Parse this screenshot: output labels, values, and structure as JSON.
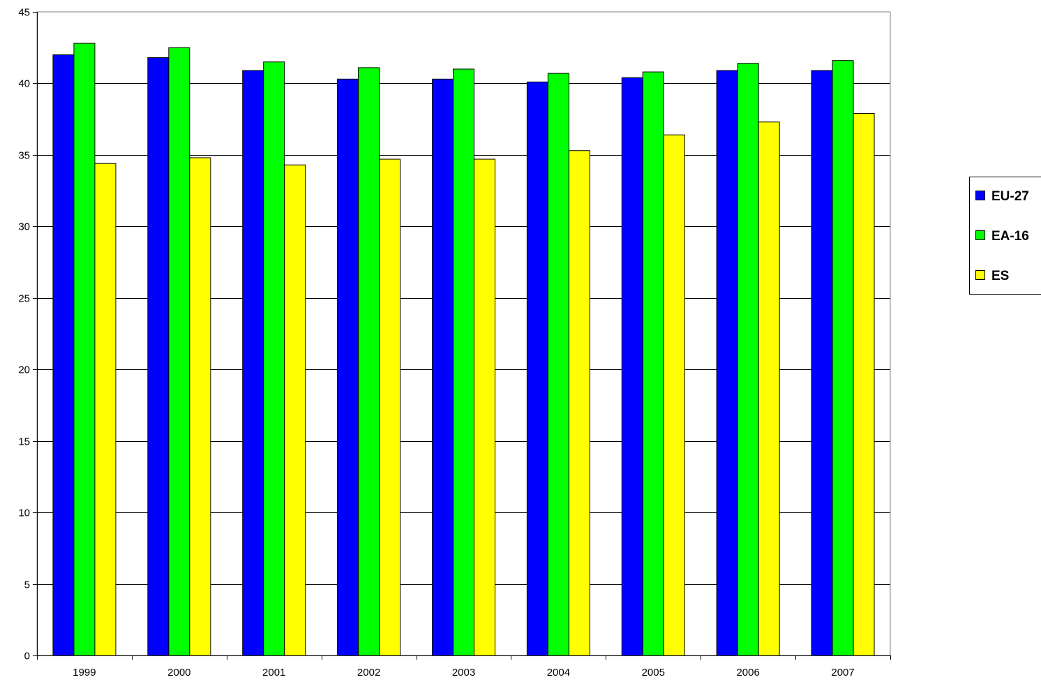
{
  "chart_data": {
    "type": "bar",
    "categories": [
      "1999",
      "2000",
      "2001",
      "2002",
      "2003",
      "2004",
      "2005",
      "2006",
      "2007"
    ],
    "series": [
      {
        "name": "EU-27",
        "color": "#0000ff",
        "values": [
          42.0,
          41.8,
          40.9,
          40.3,
          40.3,
          40.1,
          40.4,
          40.9,
          40.9
        ]
      },
      {
        "name": "EA-16",
        "color": "#00ff00",
        "values": [
          42.8,
          42.5,
          41.5,
          41.1,
          41.0,
          40.7,
          40.8,
          41.4,
          41.6
        ]
      },
      {
        "name": "ES",
        "color": "#ffff00",
        "values": [
          34.4,
          34.8,
          34.3,
          34.7,
          34.7,
          35.3,
          36.4,
          37.3,
          37.9
        ]
      }
    ],
    "y_ticks": [
      "0",
      "5",
      "10",
      "15",
      "20",
      "25",
      "30",
      "35",
      "40",
      "45"
    ],
    "ylim": [
      0,
      45
    ],
    "grid": true,
    "legend_position": "right"
  }
}
